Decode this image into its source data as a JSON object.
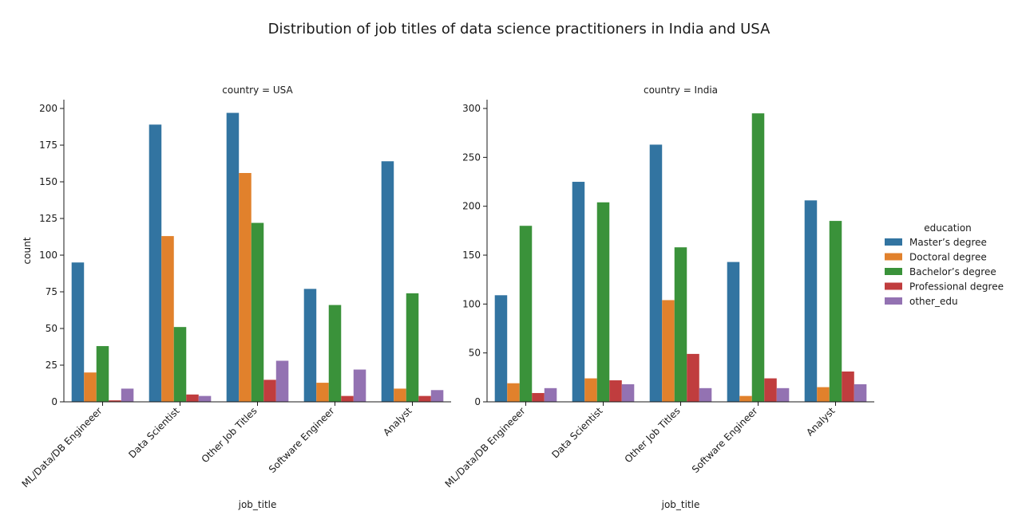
{
  "figure": {
    "title": "Distribution of job titles of data science practitioners in India and USA"
  },
  "chart_data": [
    {
      "type": "bar",
      "title": "country = USA",
      "xlabel": "job_title",
      "ylabel": "count",
      "ylim": [
        0,
        206
      ],
      "yticks": [
        0,
        25,
        50,
        75,
        100,
        125,
        150,
        175,
        200
      ],
      "categories": [
        "ML/Data/DB Engineeer",
        "Data Scientist",
        "Other Job Titles",
        "Software Engineer",
        "Analyst"
      ],
      "series": [
        {
          "name": "Master’s degree",
          "color": "#3274a1",
          "values": [
            95,
            189,
            197,
            77,
            164
          ]
        },
        {
          "name": "Doctoral degree",
          "color": "#e1812c",
          "values": [
            20,
            113,
            156,
            13,
            9
          ]
        },
        {
          "name": "Bachelor’s degree",
          "color": "#3a923a",
          "values": [
            38,
            51,
            122,
            66,
            74
          ]
        },
        {
          "name": "Professional degree",
          "color": "#c03d3e",
          "values": [
            1,
            5,
            15,
            4,
            4
          ]
        },
        {
          "name": "other_edu",
          "color": "#9372b2",
          "values": [
            9,
            4,
            28,
            22,
            8
          ]
        }
      ]
    },
    {
      "type": "bar",
      "title": "country = India",
      "xlabel": "job_title",
      "ylabel": "",
      "ylim": [
        0,
        309
      ],
      "yticks": [
        0,
        50,
        100,
        150,
        200,
        250,
        300
      ],
      "categories": [
        "ML/Data/DB Engineeer",
        "Data Scientist",
        "Other Job Titles",
        "Software Engineer",
        "Analyst"
      ],
      "series": [
        {
          "name": "Master’s degree",
          "color": "#3274a1",
          "values": [
            109,
            225,
            263,
            143,
            206
          ]
        },
        {
          "name": "Doctoral degree",
          "color": "#e1812c",
          "values": [
            19,
            24,
            104,
            6,
            15
          ]
        },
        {
          "name": "Bachelor’s degree",
          "color": "#3a923a",
          "values": [
            180,
            204,
            158,
            295,
            185
          ]
        },
        {
          "name": "Professional degree",
          "color": "#c03d3e",
          "values": [
            9,
            22,
            49,
            24,
            31
          ]
        },
        {
          "name": "other_edu",
          "color": "#9372b2",
          "values": [
            14,
            18,
            14,
            14,
            18
          ]
        }
      ]
    }
  ],
  "legend": {
    "title": "education",
    "placement": "right",
    "items": [
      {
        "name": "Master’s degree",
        "color": "#3274a1"
      },
      {
        "name": "Doctoral degree",
        "color": "#e1812c"
      },
      {
        "name": "Bachelor’s degree",
        "color": "#3a923a"
      },
      {
        "name": "Professional degree",
        "color": "#c03d3e"
      },
      {
        "name": "other_edu",
        "color": "#9372b2"
      }
    ]
  }
}
